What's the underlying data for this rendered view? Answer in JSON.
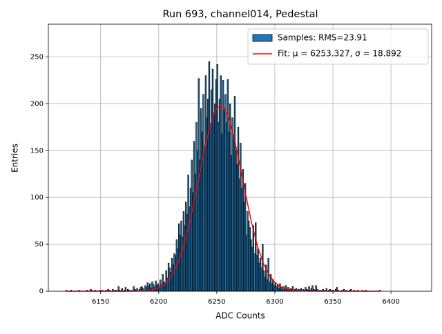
{
  "chart_data": {
    "type": "histogram",
    "title": "Run 693, channel014, Pedestal",
    "xlabel": "ADC Counts",
    "ylabel": "Entries",
    "name": "Samples: RMS=23.91",
    "color": "#1f77b4",
    "edgecolor": "#000000",
    "bins": [
      6120,
      6121,
      6122,
      6123,
      6124,
      6125,
      6126,
      6127,
      6128,
      6129,
      6130,
      6131,
      6132,
      6133,
      6134,
      6135,
      6136,
      6137,
      6138,
      6139,
      6140,
      6141,
      6142,
      6143,
      6144,
      6145,
      6146,
      6147,
      6148,
      6149,
      6150,
      6151,
      6152,
      6153,
      6154,
      6155,
      6156,
      6157,
      6158,
      6159,
      6160,
      6161,
      6162,
      6163,
      6164,
      6165,
      6166,
      6167,
      6168,
      6169,
      6170,
      6171,
      6172,
      6173,
      6174,
      6175,
      6176,
      6177,
      6178,
      6179,
      6180,
      6181,
      6182,
      6183,
      6184,
      6185,
      6186,
      6187,
      6188,
      6189,
      6190,
      6191,
      6192,
      6193,
      6194,
      6195,
      6196,
      6197,
      6198,
      6199,
      6200,
      6201,
      6202,
      6203,
      6204,
      6205,
      6206,
      6207,
      6208,
      6209,
      6210,
      6211,
      6212,
      6213,
      6214,
      6215,
      6216,
      6217,
      6218,
      6219,
      6220,
      6221,
      6222,
      6223,
      6224,
      6225,
      6226,
      6227,
      6228,
      6229,
      6230,
      6231,
      6232,
      6233,
      6234,
      6235,
      6236,
      6237,
      6238,
      6239,
      6240,
      6241,
      6242,
      6243,
      6244,
      6245,
      6246,
      6247,
      6248,
      6249,
      6250,
      6251,
      6252,
      6253,
      6254,
      6255,
      6256,
      6257,
      6258,
      6259,
      6260,
      6261,
      6262,
      6263,
      6264,
      6265,
      6266,
      6267,
      6268,
      6269,
      6270,
      6271,
      6272,
      6273,
      6274,
      6275,
      6276,
      6277,
      6278,
      6279,
      6280,
      6281,
      6282,
      6283,
      6284,
      6285,
      6286,
      6287,
      6288,
      6289,
      6290,
      6291,
      6292,
      6293,
      6294,
      6295,
      6296,
      6297,
      6298,
      6299,
      6300,
      6301,
      6302,
      6303,
      6304,
      6305,
      6306,
      6307,
      6308,
      6309,
      6310,
      6311,
      6312,
      6313,
      6314,
      6315,
      6316,
      6317,
      6318,
      6319,
      6320,
      6321,
      6322,
      6323,
      6324,
      6325,
      6326,
      6327,
      6328,
      6329,
      6330,
      6331,
      6332,
      6333,
      6334,
      6335,
      6336,
      6337,
      6338,
      6339,
      6340,
      6341,
      6342,
      6343,
      6344,
      6345,
      6346,
      6347,
      6348,
      6349,
      6350,
      6351,
      6352,
      6353,
      6354,
      6355,
      6356,
      6357,
      6358,
      6359,
      6360,
      6361,
      6362,
      6363,
      6364,
      6365,
      6366,
      6367,
      6368,
      6369,
      6370,
      6371,
      6372,
      6373,
      6374,
      6375,
      6376,
      6377,
      6378,
      6379,
      6380,
      6381,
      6382,
      6383,
      6384,
      6385,
      6386,
      6387,
      6388,
      6389,
      6390,
      6391
    ],
    "counts": [
      1,
      0,
      0,
      0,
      1,
      0,
      0,
      0,
      0,
      0,
      0,
      1,
      0,
      0,
      0,
      0,
      0,
      0,
      1,
      0,
      0,
      2,
      1,
      0,
      0,
      1,
      0,
      0,
      0,
      1,
      0,
      1,
      0,
      0,
      1,
      0,
      2,
      1,
      0,
      0,
      2,
      0,
      1,
      1,
      0,
      5,
      1,
      0,
      3,
      0,
      1,
      4,
      0,
      2,
      1,
      0,
      1,
      0,
      5,
      2,
      1,
      3,
      0,
      2,
      4,
      5,
      3,
      1,
      6,
      4,
      9,
      5,
      8,
      3,
      10,
      7,
      4,
      11,
      6,
      8,
      5,
      12,
      7,
      18,
      10,
      9,
      22,
      14,
      30,
      25,
      20,
      35,
      28,
      40,
      38,
      55,
      45,
      72,
      60,
      75,
      58,
      85,
      70,
      95,
      82,
      124,
      90,
      110,
      140,
      105,
      160,
      125,
      180,
      150,
      227,
      140,
      195,
      170,
      210,
      155,
      230,
      185,
      205,
      245,
      175,
      215,
      237,
      190,
      200,
      226,
      242,
      180,
      205,
      230,
      168,
      225,
      195,
      210,
      180,
      226,
      170,
      200,
      145,
      185,
      165,
      208,
      150,
      135,
      175,
      120,
      158,
      110,
      130,
      95,
      115,
      60,
      85,
      75,
      68,
      55,
      47,
      70,
      40,
      73,
      38,
      45,
      30,
      35,
      25,
      50,
      22,
      15,
      28,
      12,
      35,
      10,
      18,
      8,
      12,
      6,
      9,
      5,
      7,
      3,
      8,
      4,
      2,
      5,
      3,
      6,
      2,
      4,
      1,
      3,
      2,
      5,
      1,
      2,
      3,
      1,
      2,
      1,
      3,
      0,
      2,
      1,
      4,
      2,
      1,
      5,
      1,
      3,
      6,
      2,
      1,
      6,
      2,
      0,
      1,
      1,
      0,
      2,
      1,
      0,
      3,
      0,
      1,
      2,
      0,
      1,
      1,
      0,
      2,
      4,
      1,
      0,
      0,
      1,
      0,
      2,
      0,
      1,
      0,
      0,
      1,
      2,
      0,
      0,
      1,
      0,
      0,
      1,
      0,
      0,
      0,
      1,
      0,
      0,
      1,
      0,
      0,
      0,
      0,
      0,
      0,
      0,
      0,
      0,
      0,
      0,
      1
    ],
    "fit": {
      "name": "Fit: μ = 6253.327, σ = 18.892",
      "color": "#ff0000",
      "x": [
        6120,
        6150,
        6170,
        6180,
        6190,
        6195,
        6200,
        6205,
        6210,
        6215,
        6220,
        6225,
        6230,
        6235,
        6240,
        6245,
        6250,
        6253.3,
        6255,
        6260,
        6265,
        6270,
        6275,
        6280,
        6285,
        6290,
        6295,
        6300,
        6305,
        6310,
        6315,
        6320,
        6330,
        6360,
        6390
      ],
      "y": [
        0,
        0,
        0,
        0.1,
        0.7,
        1.7,
        3.7,
        7.5,
        14.4,
        25.4,
        42,
        64.5,
        92.6,
        123.9,
        154.5,
        179.8,
        195,
        198,
        197.2,
        186,
        163.5,
        134,
        102.4,
        73,
        48.5,
        30,
        17.4,
        9.4,
        4.7,
        2.2,
        1,
        0.4,
        0.1,
        0,
        0
      ]
    },
    "xlim": [
      6105,
      6435
    ],
    "ylim": [
      0,
      285
    ],
    "xticks": [
      6150,
      6200,
      6250,
      6300,
      6350,
      6400
    ],
    "yticks": [
      0,
      50,
      100,
      150,
      200,
      250
    ],
    "grid": true,
    "legend": "upper right"
  }
}
